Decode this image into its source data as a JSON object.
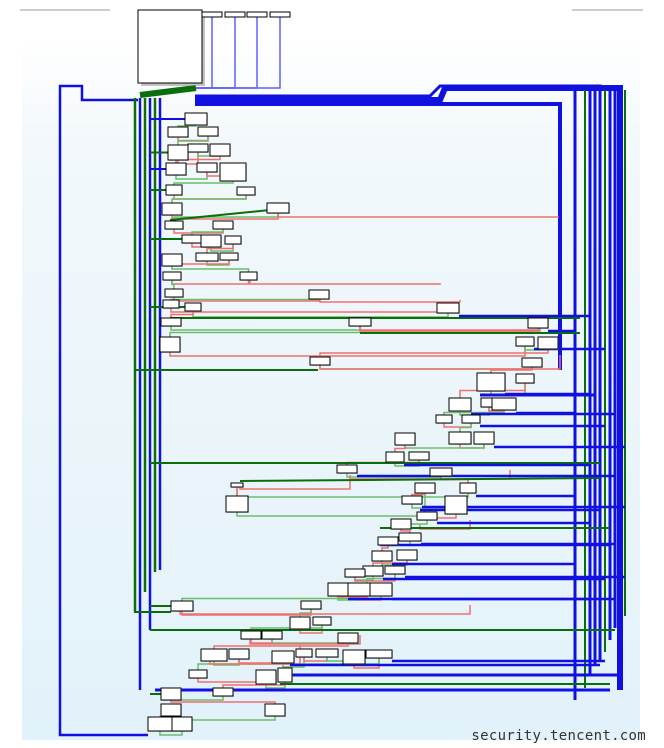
{
  "watermark": "security.tencent.com",
  "colors": {
    "background": "#eef6fb",
    "node_fill": "#ffffff",
    "node_border": "#000000",
    "edge_unconditional": "#1010e0",
    "edge_true": "#0a6e0a",
    "edge_false": "#f07070"
  }
}
